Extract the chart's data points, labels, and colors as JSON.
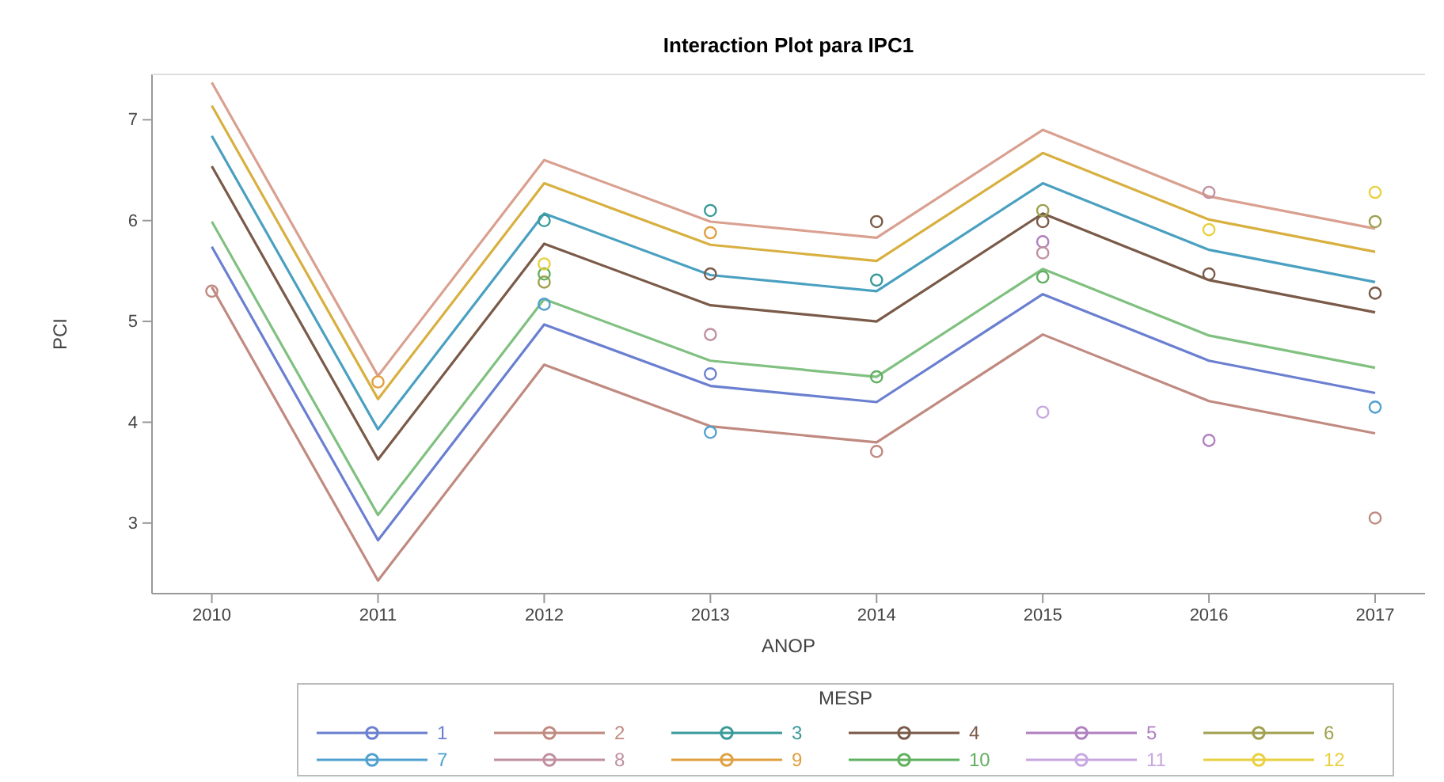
{
  "chart_data": {
    "type": "line",
    "title": "Interaction Plot para IPC1",
    "xlabel": "ANOP",
    "ylabel": "PCI",
    "legend_title": "MESP",
    "xlim": [
      2009.64,
      2017.3
    ],
    "xticks": [
      2010,
      2011,
      2012,
      2013,
      2014,
      2015,
      2016,
      2017
    ],
    "ylim": [
      2.3,
      7.45
    ],
    "yticks": [
      3,
      4,
      5,
      6,
      7
    ],
    "grid": false,
    "legend": "bottom",
    "series": [
      {
        "marker": "none",
        "color": "#d9a090",
        "x": [
          2010,
          2011,
          2012,
          2013,
          2014,
          2015,
          2016,
          2017
        ],
        "values": [
          7.37,
          4.46,
          6.6,
          5.99,
          5.83,
          6.9,
          6.24,
          5.92
        ]
      },
      {
        "marker": "none",
        "color": "#d8b040",
        "x": [
          2010,
          2011,
          2012,
          2013,
          2014,
          2015,
          2016,
          2017
        ],
        "values": [
          7.14,
          4.23,
          6.37,
          5.76,
          5.6,
          6.67,
          6.01,
          5.69
        ]
      },
      {
        "marker": "none",
        "color": "#4aa0c0",
        "x": [
          2010,
          2011,
          2012,
          2013,
          2014,
          2015,
          2016,
          2017
        ],
        "values": [
          6.84,
          3.93,
          6.07,
          5.46,
          5.3,
          6.37,
          5.71,
          5.39
        ]
      },
      {
        "marker": "none",
        "color": "#7a5a48",
        "x": [
          2010,
          2011,
          2012,
          2013,
          2014,
          2015,
          2016,
          2017
        ],
        "values": [
          6.54,
          3.63,
          5.77,
          5.16,
          5.0,
          6.07,
          5.41,
          5.09
        ]
      },
      {
        "marker": "none",
        "color": "#80c080",
        "x": [
          2010,
          2011,
          2012,
          2013,
          2014,
          2015,
          2016,
          2017
        ],
        "values": [
          5.99,
          3.08,
          5.22,
          4.61,
          4.45,
          5.52,
          4.86,
          4.54
        ]
      },
      {
        "marker": "none",
        "color": "#6a7fd0",
        "x": [
          2010,
          2011,
          2012,
          2013,
          2014,
          2015,
          2016,
          2017
        ],
        "values": [
          5.74,
          2.83,
          4.97,
          4.36,
          4.2,
          5.27,
          4.61,
          4.29
        ]
      },
      {
        "marker": "none",
        "color": "#c08a80",
        "x": [
          2010,
          2011,
          2012,
          2013,
          2014,
          2015,
          2016,
          2017
        ],
        "values": [
          5.34,
          2.43,
          4.57,
          3.96,
          3.8,
          4.87,
          4.21,
          3.89
        ]
      },
      {
        "type": "scatter",
        "marker": "circle",
        "name": "1",
        "color": "#6a7fd0",
        "x": [
          2013
        ],
        "values": [
          4.48
        ]
      },
      {
        "type": "scatter",
        "marker": "circle",
        "name": "2",
        "color": "#c08a80",
        "x": [
          2010,
          2014,
          2017
        ],
        "values": [
          5.3,
          3.71,
          3.05
        ]
      },
      {
        "type": "scatter",
        "marker": "circle",
        "name": "3",
        "color": "#3a9a9a",
        "x": [
          2012,
          2013,
          2014
        ],
        "values": [
          6.0,
          6.1,
          5.41
        ]
      },
      {
        "type": "scatter",
        "marker": "circle",
        "name": "4",
        "color": "#7a5a48",
        "x": [
          2013,
          2014,
          2015,
          2016,
          2017
        ],
        "values": [
          5.47,
          5.99,
          5.99,
          5.47,
          5.28
        ]
      },
      {
        "type": "scatter",
        "marker": "circle",
        "name": "5",
        "color": "#b080c0",
        "x": [
          2015,
          2016
        ],
        "values": [
          5.79,
          3.82
        ]
      },
      {
        "type": "scatter",
        "marker": "circle",
        "name": "6",
        "color": "#a0a050",
        "x": [
          2012,
          2015,
          2017
        ],
        "values": [
          5.39,
          6.1,
          5.99
        ]
      },
      {
        "type": "scatter",
        "marker": "circle",
        "name": "7",
        "color": "#50a0d0",
        "x": [
          2012,
          2013,
          2017
        ],
        "values": [
          5.17,
          3.9,
          4.15
        ]
      },
      {
        "type": "scatter",
        "marker": "circle",
        "name": "8",
        "color": "#c090a0",
        "x": [
          2013,
          2015,
          2016
        ],
        "values": [
          4.87,
          5.68,
          6.28
        ]
      },
      {
        "type": "scatter",
        "marker": "circle",
        "name": "9",
        "color": "#e0a040",
        "x": [
          2011,
          2013
        ],
        "values": [
          4.4,
          5.88
        ]
      },
      {
        "type": "scatter",
        "marker": "circle",
        "name": "10",
        "color": "#60b060",
        "x": [
          2012,
          2014,
          2015
        ],
        "values": [
          5.47,
          4.45,
          5.44
        ]
      },
      {
        "type": "scatter",
        "marker": "circle",
        "name": "11",
        "color": "#c8a8e0",
        "x": [
          2015
        ],
        "values": [
          4.1
        ]
      },
      {
        "type": "scatter",
        "marker": "circle",
        "name": "12",
        "color": "#e8d040",
        "x": [
          2012,
          2016,
          2017
        ],
        "values": [
          5.57,
          5.91,
          6.28
        ]
      }
    ]
  }
}
